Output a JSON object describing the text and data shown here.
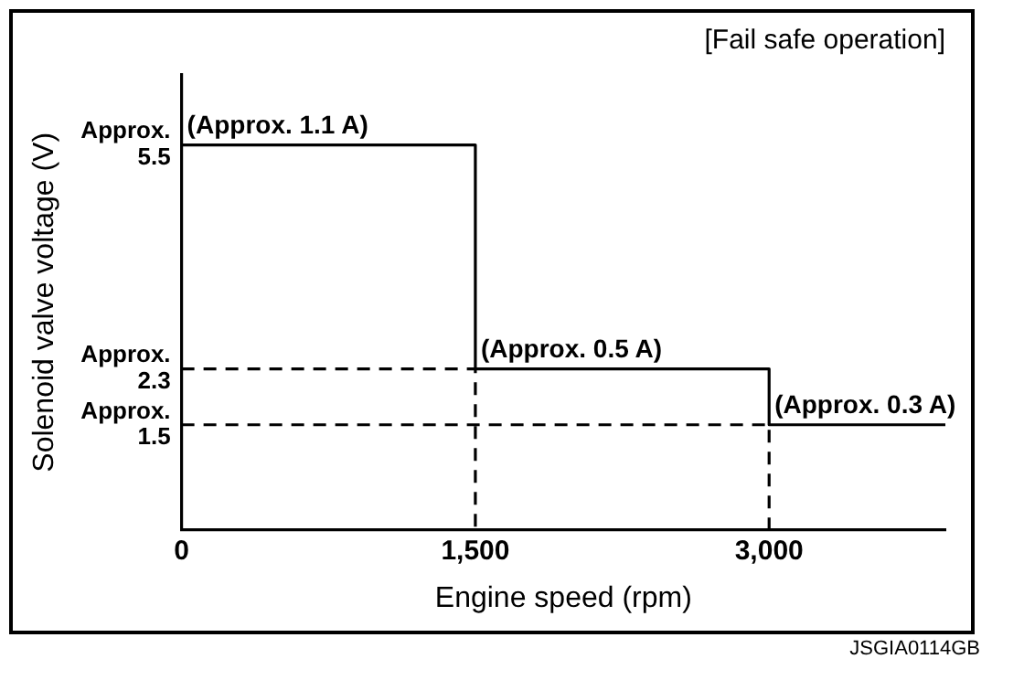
{
  "chart_data": {
    "type": "step",
    "xlabel": "Engine speed (rpm)",
    "ylabel": "Solenoid valve voltage (V)",
    "xlim": [
      0,
      3900
    ],
    "ylim": [
      0,
      6.5
    ],
    "xticks": [
      0,
      {
        "value": 1500,
        "label": "1,500"
      },
      {
        "value": 3000,
        "label": "3,000"
      }
    ],
    "yticks": [
      {
        "value": 5.5,
        "label": "Approx. 5.5"
      },
      {
        "value": 2.3,
        "label": "Approx. 2.3"
      },
      {
        "value": 1.5,
        "label": "Approx. 1.5"
      }
    ],
    "series": [
      {
        "type": "step",
        "color": "#000000",
        "x": [
          0,
          1500,
          3000,
          3900
        ],
        "values": [
          5.5,
          2.3,
          1.5,
          1.5
        ]
      },
      {
        "type": "line",
        "color": "#000000",
        "line_style": "dashed",
        "x": [
          0,
          1500,
          1500
        ],
        "values": [
          2.3,
          2.3,
          0
        ]
      },
      {
        "type": "line",
        "color": "#000000",
        "line_style": "dashed",
        "x": [
          0,
          3000,
          3000
        ],
        "values": [
          1.5,
          1.5,
          0
        ]
      }
    ],
    "annotations": [
      {
        "text": "(Approx. 1.1 A)",
        "x": 0,
        "y": 5.5
      },
      {
        "text": "(Approx. 0.5 A)",
        "x": 1500,
        "y": 2.3
      },
      {
        "text": "(Approx. 0.3 A)",
        "x": 3000,
        "y": 1.5
      },
      "[Fail safe operation]",
      "JSGIA0114GB"
    ],
    "grid": false,
    "legend": false,
    "marker": "none"
  }
}
